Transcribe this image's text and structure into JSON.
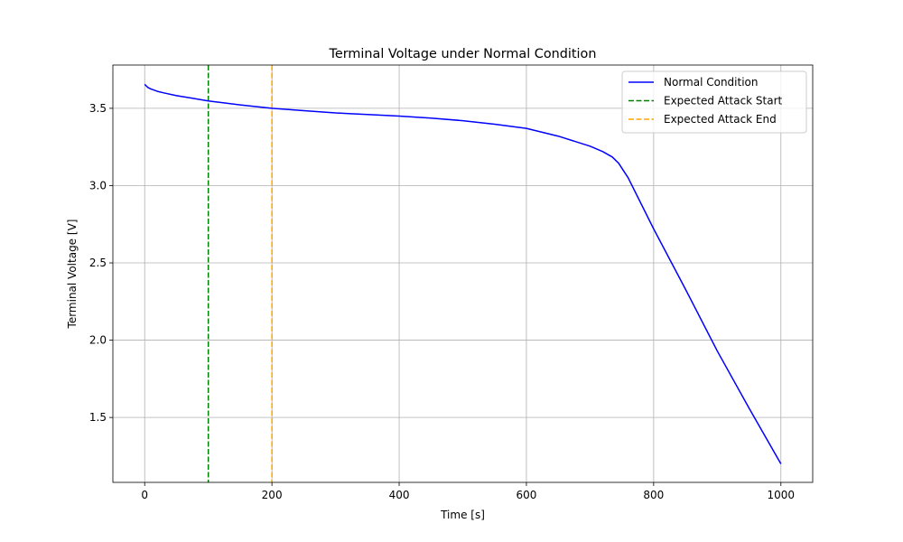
{
  "chart_data": {
    "type": "line",
    "title": "Terminal Voltage under Normal Condition",
    "xlabel": "Time [s]",
    "ylabel": "Terminal Voltage [V]",
    "xlim": [
      -50,
      1050
    ],
    "ylim": [
      1.08,
      3.78
    ],
    "xticks": [
      0,
      200,
      400,
      600,
      800,
      1000
    ],
    "xtick_labels": [
      "0",
      "200",
      "400",
      "600",
      "800",
      "1000"
    ],
    "yticks": [
      1.5,
      2.0,
      2.5,
      3.0,
      3.5
    ],
    "ytick_labels": [
      "1.5",
      "2.0",
      "2.5",
      "3.0",
      "3.5"
    ],
    "grid": true,
    "legend_position": "top-right",
    "series": [
      {
        "name": "Normal Condition",
        "color": "#0000ff",
        "style": "solid",
        "x": [
          0,
          5,
          10,
          20,
          30,
          50,
          75,
          100,
          150,
          200,
          250,
          300,
          350,
          400,
          450,
          500,
          550,
          600,
          650,
          700,
          720,
          735,
          745,
          760,
          800,
          850,
          900,
          950,
          1000
        ],
        "y": [
          3.655,
          3.635,
          3.625,
          3.61,
          3.6,
          3.582,
          3.565,
          3.548,
          3.522,
          3.5,
          3.485,
          3.47,
          3.46,
          3.45,
          3.437,
          3.42,
          3.397,
          3.37,
          3.32,
          3.255,
          3.22,
          3.185,
          3.145,
          3.05,
          2.72,
          2.33,
          1.93,
          1.56,
          1.2
        ]
      }
    ],
    "vlines": [
      {
        "name": "Expected Attack Start",
        "x": 100,
        "color": "#008000",
        "style": "dashed"
      },
      {
        "name": "Expected Attack End",
        "x": 200,
        "color": "#ffa500",
        "style": "dashed"
      }
    ]
  }
}
